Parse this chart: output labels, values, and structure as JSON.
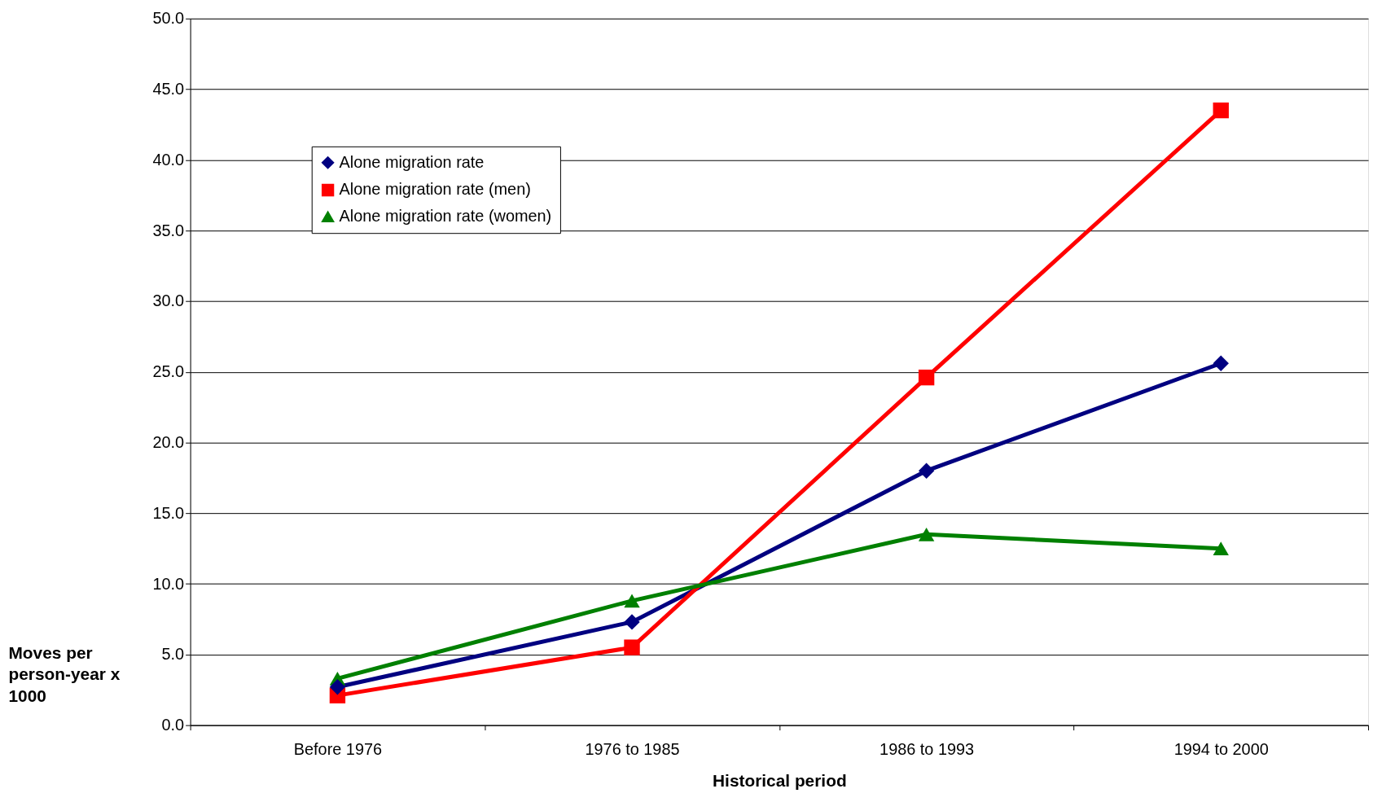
{
  "chart_data": {
    "type": "line",
    "xlabel": "Historical period",
    "ylabel": "Moves per person-year x 1000",
    "categories": [
      "Before 1976",
      "1976 to 1985",
      "1986 to 1993",
      "1994 to 2000"
    ],
    "series": [
      {
        "name": "Alone migration rate",
        "color": "#000080",
        "marker": "diamond",
        "values": [
          2.7,
          7.3,
          18.0,
          25.6
        ]
      },
      {
        "name": "Alone migration rate (men)",
        "color": "#ff0000",
        "marker": "square",
        "values": [
          2.1,
          5.5,
          24.6,
          43.5
        ]
      },
      {
        "name": "Alone migration rate (women)",
        "color": "#008000",
        "marker": "triangle",
        "values": [
          3.3,
          8.8,
          13.5,
          12.5
        ]
      }
    ],
    "ylim": [
      0,
      50
    ],
    "yticks": [
      {
        "value": 0,
        "label": "0.0"
      },
      {
        "value": 5,
        "label": "5.0"
      },
      {
        "value": 10,
        "label": "10.0"
      },
      {
        "value": 15,
        "label": "15.0"
      },
      {
        "value": 20,
        "label": "20.0"
      },
      {
        "value": 25,
        "label": "25.0"
      },
      {
        "value": 30,
        "label": "30.0"
      },
      {
        "value": 35,
        "label": "35.0"
      },
      {
        "value": 40,
        "label": "40.0"
      },
      {
        "value": 45,
        "label": "45.0"
      },
      {
        "value": 50,
        "label": "50.0"
      }
    ],
    "grid": "y",
    "legend": "top left",
    "line_style": "solid"
  }
}
